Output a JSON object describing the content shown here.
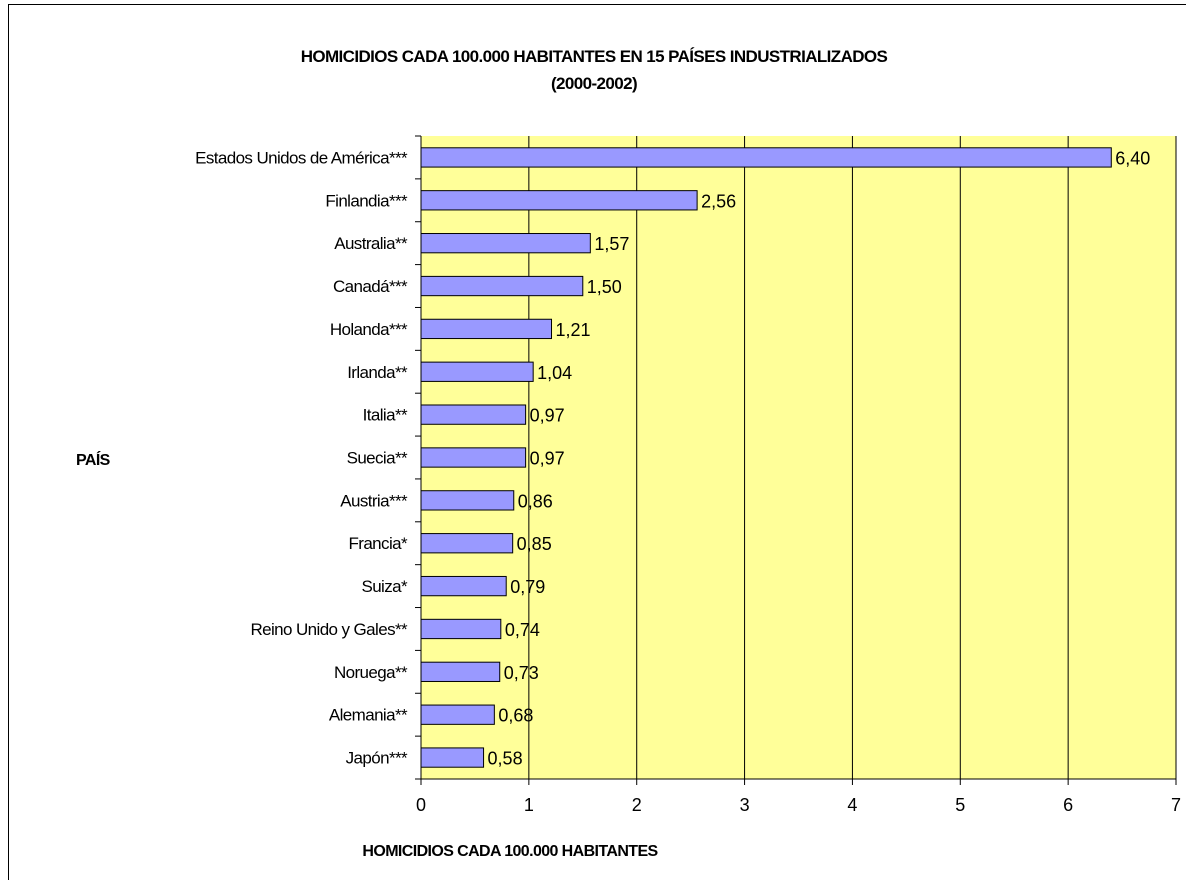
{
  "chart_data": {
    "type": "bar",
    "orientation": "horizontal",
    "title": "HOMICIDIOS CADA 100.000 HABITANTES EN 15 PAÍSES INDUSTRIALIZADOS",
    "subtitle": "(2000-2002)",
    "ylabel": "PAÍS",
    "xlabel": "HOMICIDIOS CADA 100.000 HABITANTES",
    "categories": [
      "Estados Unidos de América***",
      "Finlandia***",
      "Australia**",
      "Canadá***",
      "Holanda***",
      "Irlanda**",
      "Italia**",
      "Suecia**",
      "Austria***",
      "Francia*",
      "Suiza*",
      "Reino Unido y Gales**",
      "Noruega**",
      "Alemania**",
      "Japón***"
    ],
    "values": [
      6.4,
      2.56,
      1.57,
      1.5,
      1.21,
      1.04,
      0.97,
      0.97,
      0.86,
      0.85,
      0.79,
      0.74,
      0.73,
      0.68,
      0.58
    ],
    "value_labels": [
      "6,40",
      "2,56",
      "1,57",
      "1,50",
      "1,21",
      "1,04",
      "0,97",
      "0,97",
      "0,86",
      "0,85",
      "0,79",
      "0,74",
      "0,73",
      "0,68",
      "0,58"
    ],
    "xlim": [
      0,
      7
    ],
    "x_ticks": [
      "0",
      "1",
      "2",
      "3",
      "4",
      "5",
      "6",
      "7"
    ],
    "grid": true,
    "legend": "none",
    "colors": {
      "plot_background": "#FFFF99",
      "bar_fill": "#9999FF",
      "bar_stroke": "#000000",
      "gridline": "#000000"
    }
  }
}
